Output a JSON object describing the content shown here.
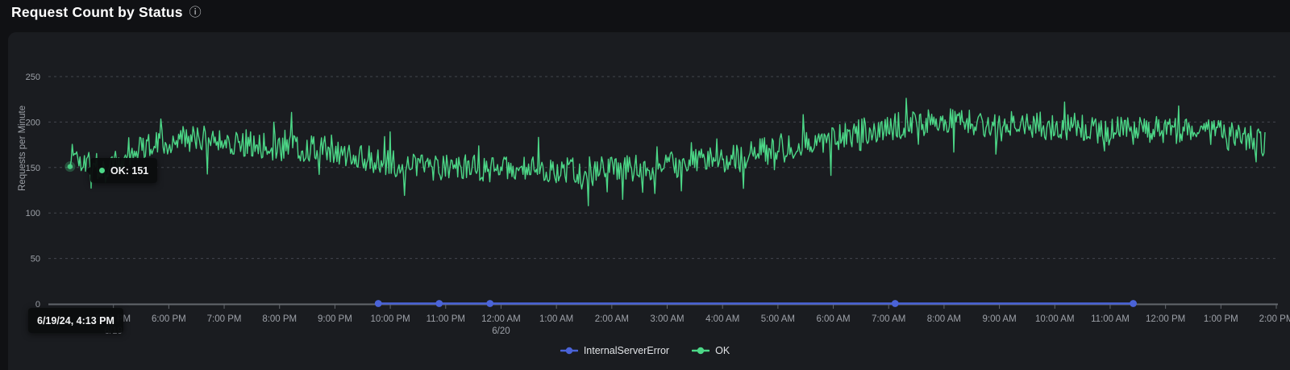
{
  "header": {
    "title": "Request Count by Status",
    "info_icon": "ⓘ"
  },
  "colors": {
    "page_bg": "#101114",
    "panel_bg": "#1a1c20",
    "ok_green": "#4cd787",
    "error_blue": "#4a63d8",
    "grid_line": "#43464d",
    "axis_line": "#63676d",
    "tick_text": "#9da1a8",
    "legend_text": "#e0e2e5"
  },
  "chart_data": {
    "type": "line",
    "title": "Request Count by Status",
    "ylabel": "Requests per Minute",
    "ylim": [
      0,
      250
    ],
    "y_ticks": [
      0,
      50,
      100,
      150,
      200,
      250
    ],
    "grid": "horizontal-dashed",
    "legend_position": "bottom-center",
    "x_range": {
      "start": "6/19/24 4:13 PM",
      "end": "6/20/24 2:00 PM"
    },
    "t_unit": "minutes since 6/19 4:00 PM",
    "x_ticks": [
      {
        "t": 60,
        "label": "5:00 PM",
        "sub": "6/19"
      },
      {
        "t": 120,
        "label": "6:00 PM"
      },
      {
        "t": 180,
        "label": "7:00 PM"
      },
      {
        "t": 240,
        "label": "8:00 PM"
      },
      {
        "t": 300,
        "label": "9:00 PM"
      },
      {
        "t": 360,
        "label": "10:00 PM"
      },
      {
        "t": 420,
        "label": "11:00 PM"
      },
      {
        "t": 480,
        "label": "12:00 AM",
        "sub": "6/20"
      },
      {
        "t": 540,
        "label": "1:00 AM"
      },
      {
        "t": 600,
        "label": "2:00 AM"
      },
      {
        "t": 660,
        "label": "3:00 AM"
      },
      {
        "t": 720,
        "label": "4:00 AM"
      },
      {
        "t": 780,
        "label": "5:00 AM"
      },
      {
        "t": 840,
        "label": "6:00 AM"
      },
      {
        "t": 900,
        "label": "7:00 AM"
      },
      {
        "t": 960,
        "label": "8:00 AM"
      },
      {
        "t": 1020,
        "label": "9:00 AM"
      },
      {
        "t": 1080,
        "label": "10:00 AM"
      },
      {
        "t": 1140,
        "label": "11:00 AM"
      },
      {
        "t": 1200,
        "label": "12:00 PM"
      },
      {
        "t": 1260,
        "label": "1:00 PM"
      },
      {
        "t": 1320,
        "label": "2:00 PM"
      }
    ],
    "series": [
      {
        "name": "OK",
        "style": "noisy-line",
        "color": "#4cd787",
        "t_domain": [
          13,
          1309
        ],
        "trend_points": [
          [
            13,
            168
          ],
          [
            30,
            155
          ],
          [
            55,
            148
          ],
          [
            80,
            168
          ],
          [
            105,
            178
          ],
          [
            150,
            182
          ],
          [
            195,
            178
          ],
          [
            240,
            172
          ],
          [
            285,
            170
          ],
          [
            330,
            162
          ],
          [
            375,
            152
          ],
          [
            420,
            150
          ],
          [
            465,
            148
          ],
          [
            510,
            148
          ],
          [
            555,
            147
          ],
          [
            600,
            147
          ],
          [
            645,
            150
          ],
          [
            690,
            155
          ],
          [
            735,
            162
          ],
          [
            780,
            172
          ],
          [
            825,
            180
          ],
          [
            870,
            190
          ],
          [
            915,
            197
          ],
          [
            960,
            200
          ],
          [
            1005,
            198
          ],
          [
            1050,
            197
          ],
          [
            1095,
            194
          ],
          [
            1140,
            193
          ],
          [
            1185,
            192
          ],
          [
            1230,
            190
          ],
          [
            1275,
            185
          ],
          [
            1309,
            178
          ]
        ],
        "noise": {
          "amplitude": 15,
          "spike_amplitude": 27,
          "spike_chance": 0.12,
          "seed": 1337,
          "step_min": 1.2
        },
        "value_range": [
          108,
          246
        ]
      },
      {
        "name": "InternalServerError",
        "style": "line-with-markers",
        "color": "#4a63d8",
        "constant_value": 0,
        "t_range": [
          347,
          1165
        ],
        "marker_t": [
          347,
          413,
          468,
          907,
          1165
        ]
      }
    ]
  },
  "tooltip": {
    "time_label": "6/19/24, 4:13 PM",
    "value_label": "OK: 151",
    "series": "OK",
    "point_t": 13,
    "point_value": 151
  },
  "legend": [
    {
      "label": "InternalServerError",
      "color": "#4a63d8"
    },
    {
      "label": "OK",
      "color": "#4cd787"
    }
  ]
}
